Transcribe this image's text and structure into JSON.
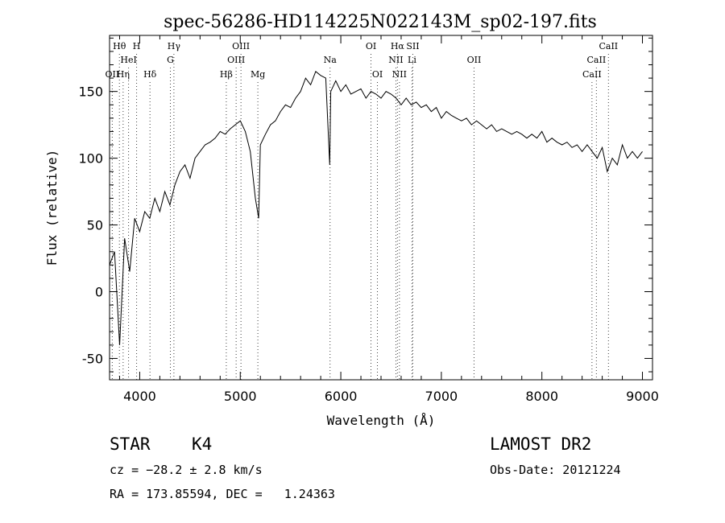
{
  "chart_data": {
    "type": "line",
    "title": "spec-56286-HD114225N022143M_sp02-197.fits",
    "xlabel": "Wavelength (Å)",
    "ylabel": "Flux (relative)",
    "xlim": [
      3700,
      9100
    ],
    "ylim": [
      -66,
      192
    ],
    "xticks": [
      4000,
      5000,
      6000,
      7000,
      8000,
      9000
    ],
    "yticks": [
      -50,
      0,
      50,
      100,
      150
    ],
    "grid": false,
    "series": [
      {
        "x": [
          3700,
          3750,
          3800,
          3850,
          3900,
          3950,
          4000,
          4050,
          4100,
          4150,
          4200,
          4250,
          4300,
          4350,
          4400,
          4450,
          4500,
          4550,
          4600,
          4650,
          4700,
          4750,
          4800,
          4850,
          4900,
          4950,
          5000,
          5050,
          5100,
          5150,
          5183,
          5200,
          5250,
          5300,
          5350,
          5400,
          5450,
          5500,
          5550,
          5600,
          5650,
          5700,
          5750,
          5800,
          5850,
          5890,
          5900,
          5950,
          6000,
          6050,
          6100,
          6150,
          6200,
          6250,
          6300,
          6350,
          6400,
          6450,
          6500,
          6550,
          6600,
          6650,
          6700,
          6750,
          6800,
          6850,
          6900,
          6950,
          7000,
          7050,
          7100,
          7150,
          7200,
          7250,
          7300,
          7350,
          7400,
          7450,
          7500,
          7550,
          7600,
          7650,
          7700,
          7750,
          7800,
          7850,
          7900,
          7950,
          8000,
          8050,
          8100,
          8150,
          8200,
          8250,
          8300,
          8350,
          8400,
          8450,
          8500,
          8550,
          8600,
          8650,
          8700,
          8750,
          8800,
          8850,
          8900,
          8950,
          9000
        ],
        "y": [
          20,
          30,
          -40,
          40,
          15,
          55,
          45,
          60,
          55,
          70,
          60,
          75,
          65,
          80,
          90,
          95,
          85,
          100,
          105,
          110,
          112,
          115,
          120,
          118,
          122,
          125,
          128,
          120,
          105,
          70,
          55,
          110,
          118,
          125,
          128,
          135,
          140,
          138,
          145,
          150,
          160,
          155,
          165,
          162,
          160,
          95,
          150,
          158,
          150,
          155,
          148,
          150,
          152,
          145,
          150,
          148,
          145,
          150,
          148,
          145,
          140,
          145,
          140,
          142,
          138,
          140,
          135,
          138,
          130,
          135,
          132,
          130,
          128,
          130,
          125,
          128,
          125,
          122,
          125,
          120,
          122,
          120,
          118,
          120,
          118,
          115,
          118,
          115,
          120,
          112,
          115,
          112,
          110,
          112,
          108,
          110,
          105,
          110,
          105,
          100,
          108,
          90,
          100,
          95,
          110,
          100,
          105,
          100,
          105
        ]
      }
    ],
    "line_markers": [
      {
        "label": "OΙΙ",
        "x": 3727,
        "row": 3
      },
      {
        "label": "Hθ",
        "x": 3798,
        "row": 1
      },
      {
        "label": "Hη",
        "x": 3835,
        "row": 3
      },
      {
        "label": "HeI",
        "x": 3889,
        "row": 2
      },
      {
        "label": "H",
        "x": 3969,
        "row": 1
      },
      {
        "label": "Hδ",
        "x": 4102,
        "row": 3
      },
      {
        "label": "Hγ",
        "x": 4340,
        "row": 1
      },
      {
        "label": "G",
        "x": 4305,
        "row": 2
      },
      {
        "label": "Hβ",
        "x": 4861,
        "row": 3
      },
      {
        "label": "OIII",
        "x": 4959,
        "row": 2
      },
      {
        "label": "OIII",
        "x": 5007,
        "row": 1
      },
      {
        "label": "Mg",
        "x": 5175,
        "row": 3
      },
      {
        "label": "Na",
        "x": 5893,
        "row": 2
      },
      {
        "label": "OI",
        "x": 6300,
        "row": 1
      },
      {
        "label": "OI",
        "x": 6364,
        "row": 3
      },
      {
        "label": "NII",
        "x": 6548,
        "row": 2
      },
      {
        "label": "Hα",
        "x": 6563,
        "row": 1
      },
      {
        "label": "NII",
        "x": 6583,
        "row": 3
      },
      {
        "label": "SII",
        "x": 6716,
        "row": 1
      },
      {
        "label": "Li",
        "x": 6708,
        "row": 2
      },
      {
        "label": "OII",
        "x": 7325,
        "row": 2
      },
      {
        "label": "CaII",
        "x": 8498,
        "row": 3
      },
      {
        "label": "CaII",
        "x": 8542,
        "row": 2
      },
      {
        "label": "CaII",
        "x": 8662,
        "row": 1
      }
    ]
  },
  "info": {
    "object_class": "STAR",
    "subclass": "K4",
    "survey": "LAMOST DR2",
    "cz": "cz = −28.2 ± 2.8 km/s",
    "obs_date": "Obs-Date: 20121224",
    "coords": "RA = 173.85594, DEC =   1.24363"
  }
}
